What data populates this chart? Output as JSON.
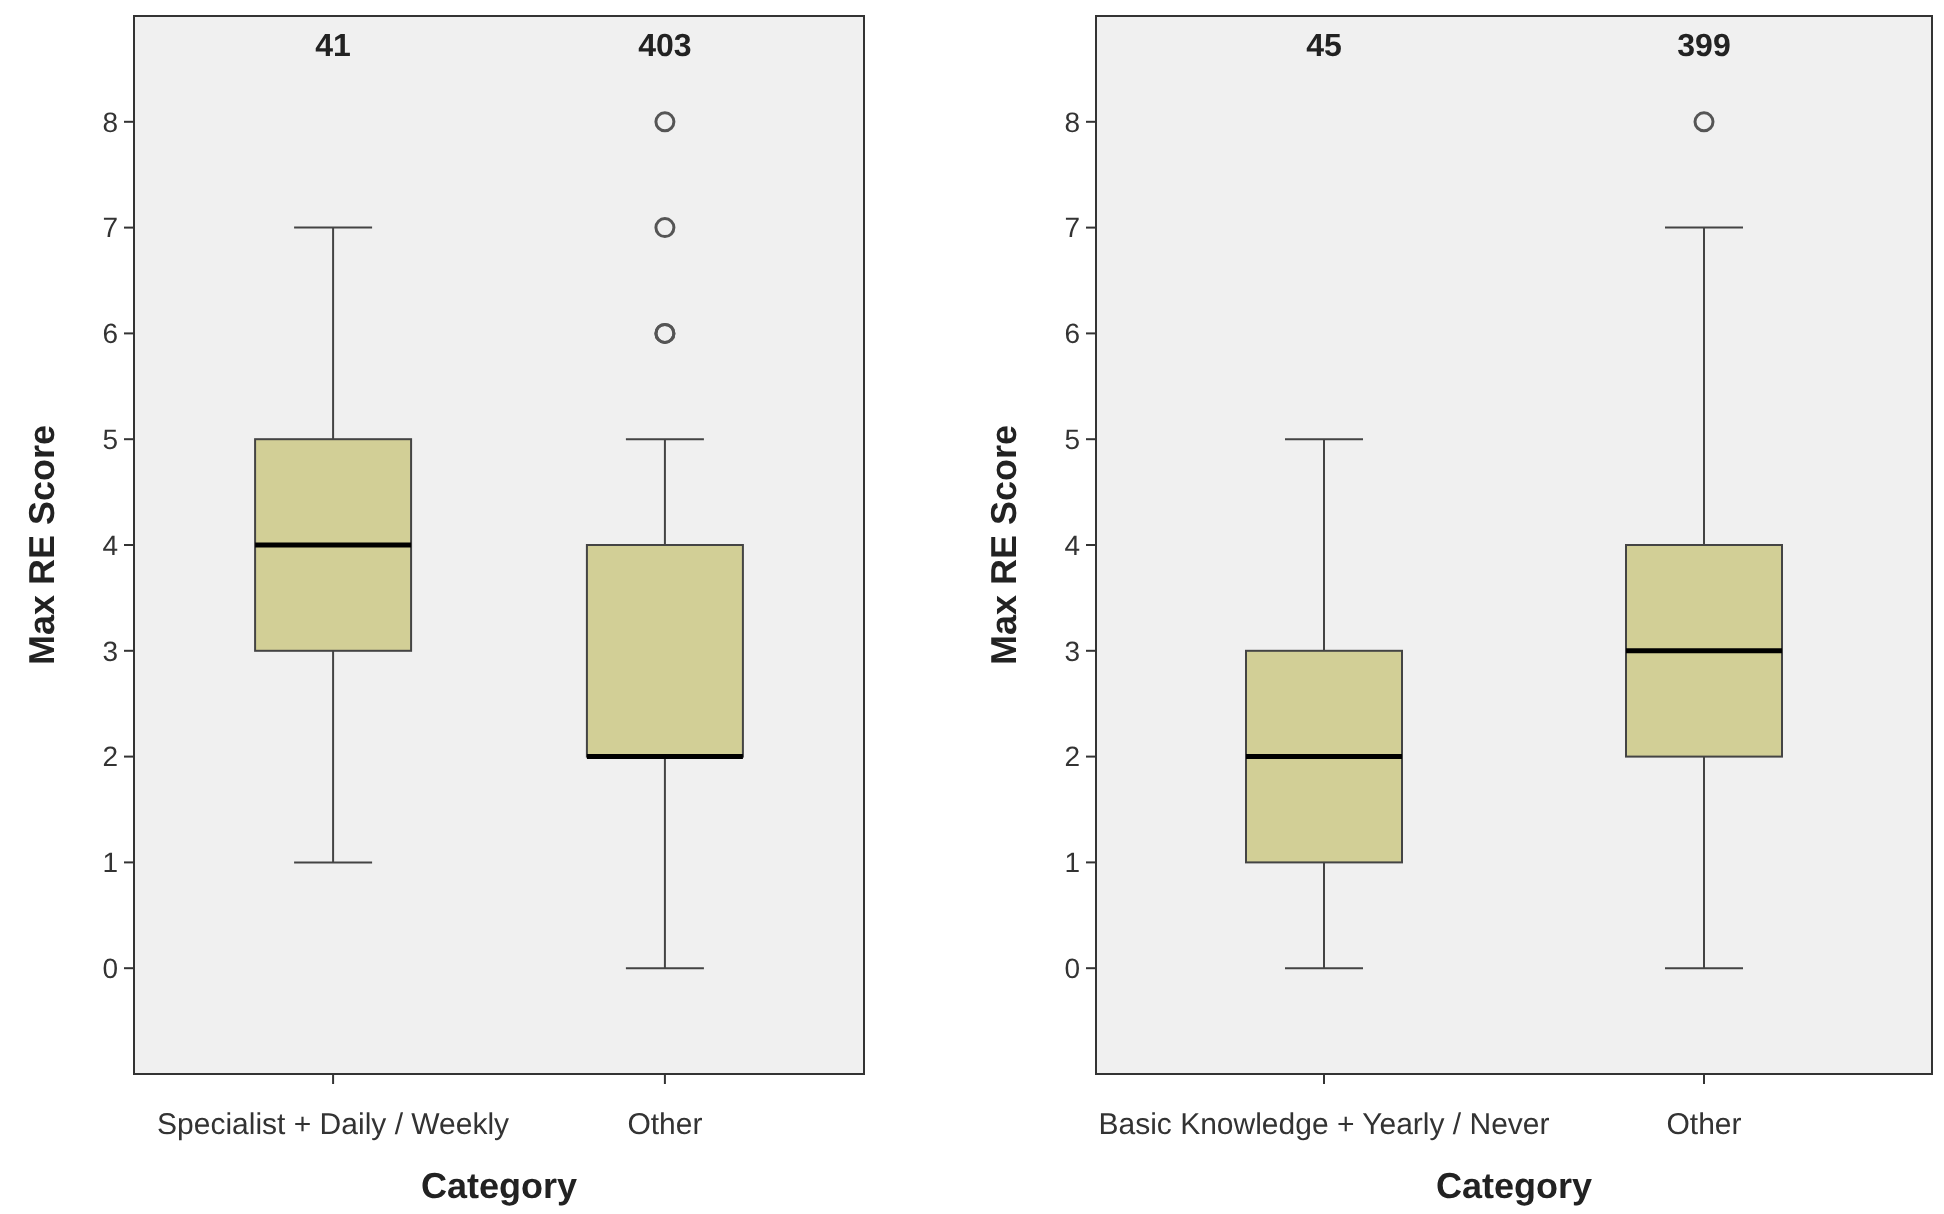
{
  "chart_data": [
    {
      "type": "box",
      "xlabel": "Category",
      "ylabel": "Max RE Score",
      "categories": [
        "Specialist + Daily / Weekly",
        "Other"
      ],
      "boxes": [
        {
          "low": 1,
          "q1": 3,
          "median": 4,
          "q3": 5,
          "high": 7
        },
        {
          "low": 0,
          "q1": 2,
          "median": 2,
          "q3": 4,
          "high": 5,
          "outliers": [
            6,
            6,
            7,
            8
          ]
        }
      ],
      "color": "#d2cf96",
      "ylim": [
        -1,
        9
      ],
      "yticks": [
        0,
        1,
        2,
        3,
        4,
        5,
        6,
        7,
        8
      ],
      "grid": false,
      "annotations": [
        "41",
        "403"
      ]
    },
    {
      "type": "box",
      "xlabel": "Category",
      "ylabel": "Max RE Score",
      "categories": [
        "Basic Knowledge + Yearly / Never",
        "Other"
      ],
      "boxes": [
        {
          "low": 0,
          "q1": 1,
          "median": 2,
          "q3": 3,
          "high": 5
        },
        {
          "low": 0,
          "q1": 2,
          "median": 3,
          "q3": 4,
          "high": 7,
          "outliers": [
            8
          ]
        }
      ],
      "color": "#d2cf96",
      "ylim": [
        -1,
        9
      ],
      "yticks": [
        0,
        1,
        2,
        3,
        4,
        5,
        6,
        7,
        8
      ],
      "grid": false,
      "annotations": [
        "45",
        "399"
      ]
    }
  ]
}
